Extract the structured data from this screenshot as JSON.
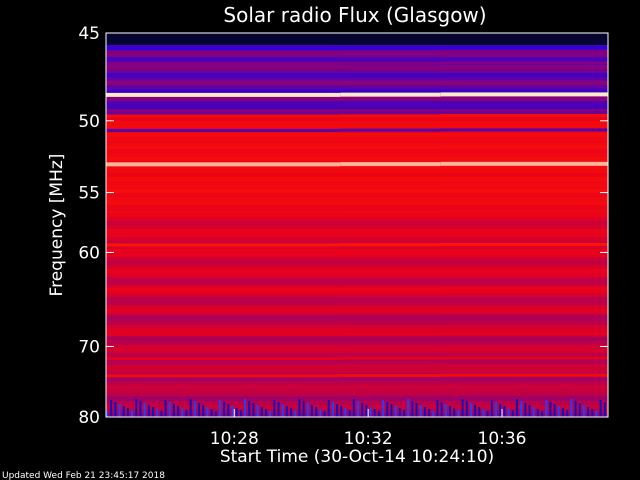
{
  "chart_data": {
    "type": "heatmap",
    "title": "Solar radio Flux (Glasgow)",
    "xlabel": "Start Time (30-Oct-14 10:24:10)",
    "ylabel": "Frequency [MHz]",
    "x_ticks": [
      "10:28",
      "10:32",
      "10:36"
    ],
    "x_tick_minutes": [
      3.833,
      7.833,
      11.833
    ],
    "x_range_minutes": [
      0,
      15
    ],
    "y_ticks": [
      45,
      50,
      55,
      60,
      70,
      80
    ],
    "ylim": [
      45,
      80
    ],
    "y_scale": "reciprocal",
    "segment_boundaries_minutes": [
      7.0,
      10.0
    ],
    "bands": [
      {
        "freq": 45.8,
        "level": 0.05
      },
      {
        "freq": 46.6,
        "level": 0.25
      },
      {
        "freq": 48.4,
        "level": 1.0
      },
      {
        "freq": 49.5,
        "level": 0.2
      },
      {
        "freq": 50.6,
        "level": 0.15
      },
      {
        "freq": 51.5,
        "level": 0.6
      },
      {
        "freq": 52.9,
        "level": 0.95
      },
      {
        "freq": 54.5,
        "level": 0.65
      },
      {
        "freq": 56.5,
        "level": 0.6
      },
      {
        "freq": 59.3,
        "level": 0.8
      },
      {
        "freq": 63.5,
        "level": 0.55
      },
      {
        "freq": 66.5,
        "level": 0.35
      },
      {
        "freq": 68.5,
        "level": 0.5
      },
      {
        "freq": 71.5,
        "level": 0.5
      },
      {
        "freq": 73.8,
        "level": 0.65
      },
      {
        "freq": 76.5,
        "level": 0.4
      }
    ],
    "colors": {
      "low": "#0000ff",
      "mid": "#ff0000",
      "high": "#ffffe0"
    }
  },
  "footer": {
    "updated": "Updated Wed Feb 21 23:45:17 2018"
  }
}
